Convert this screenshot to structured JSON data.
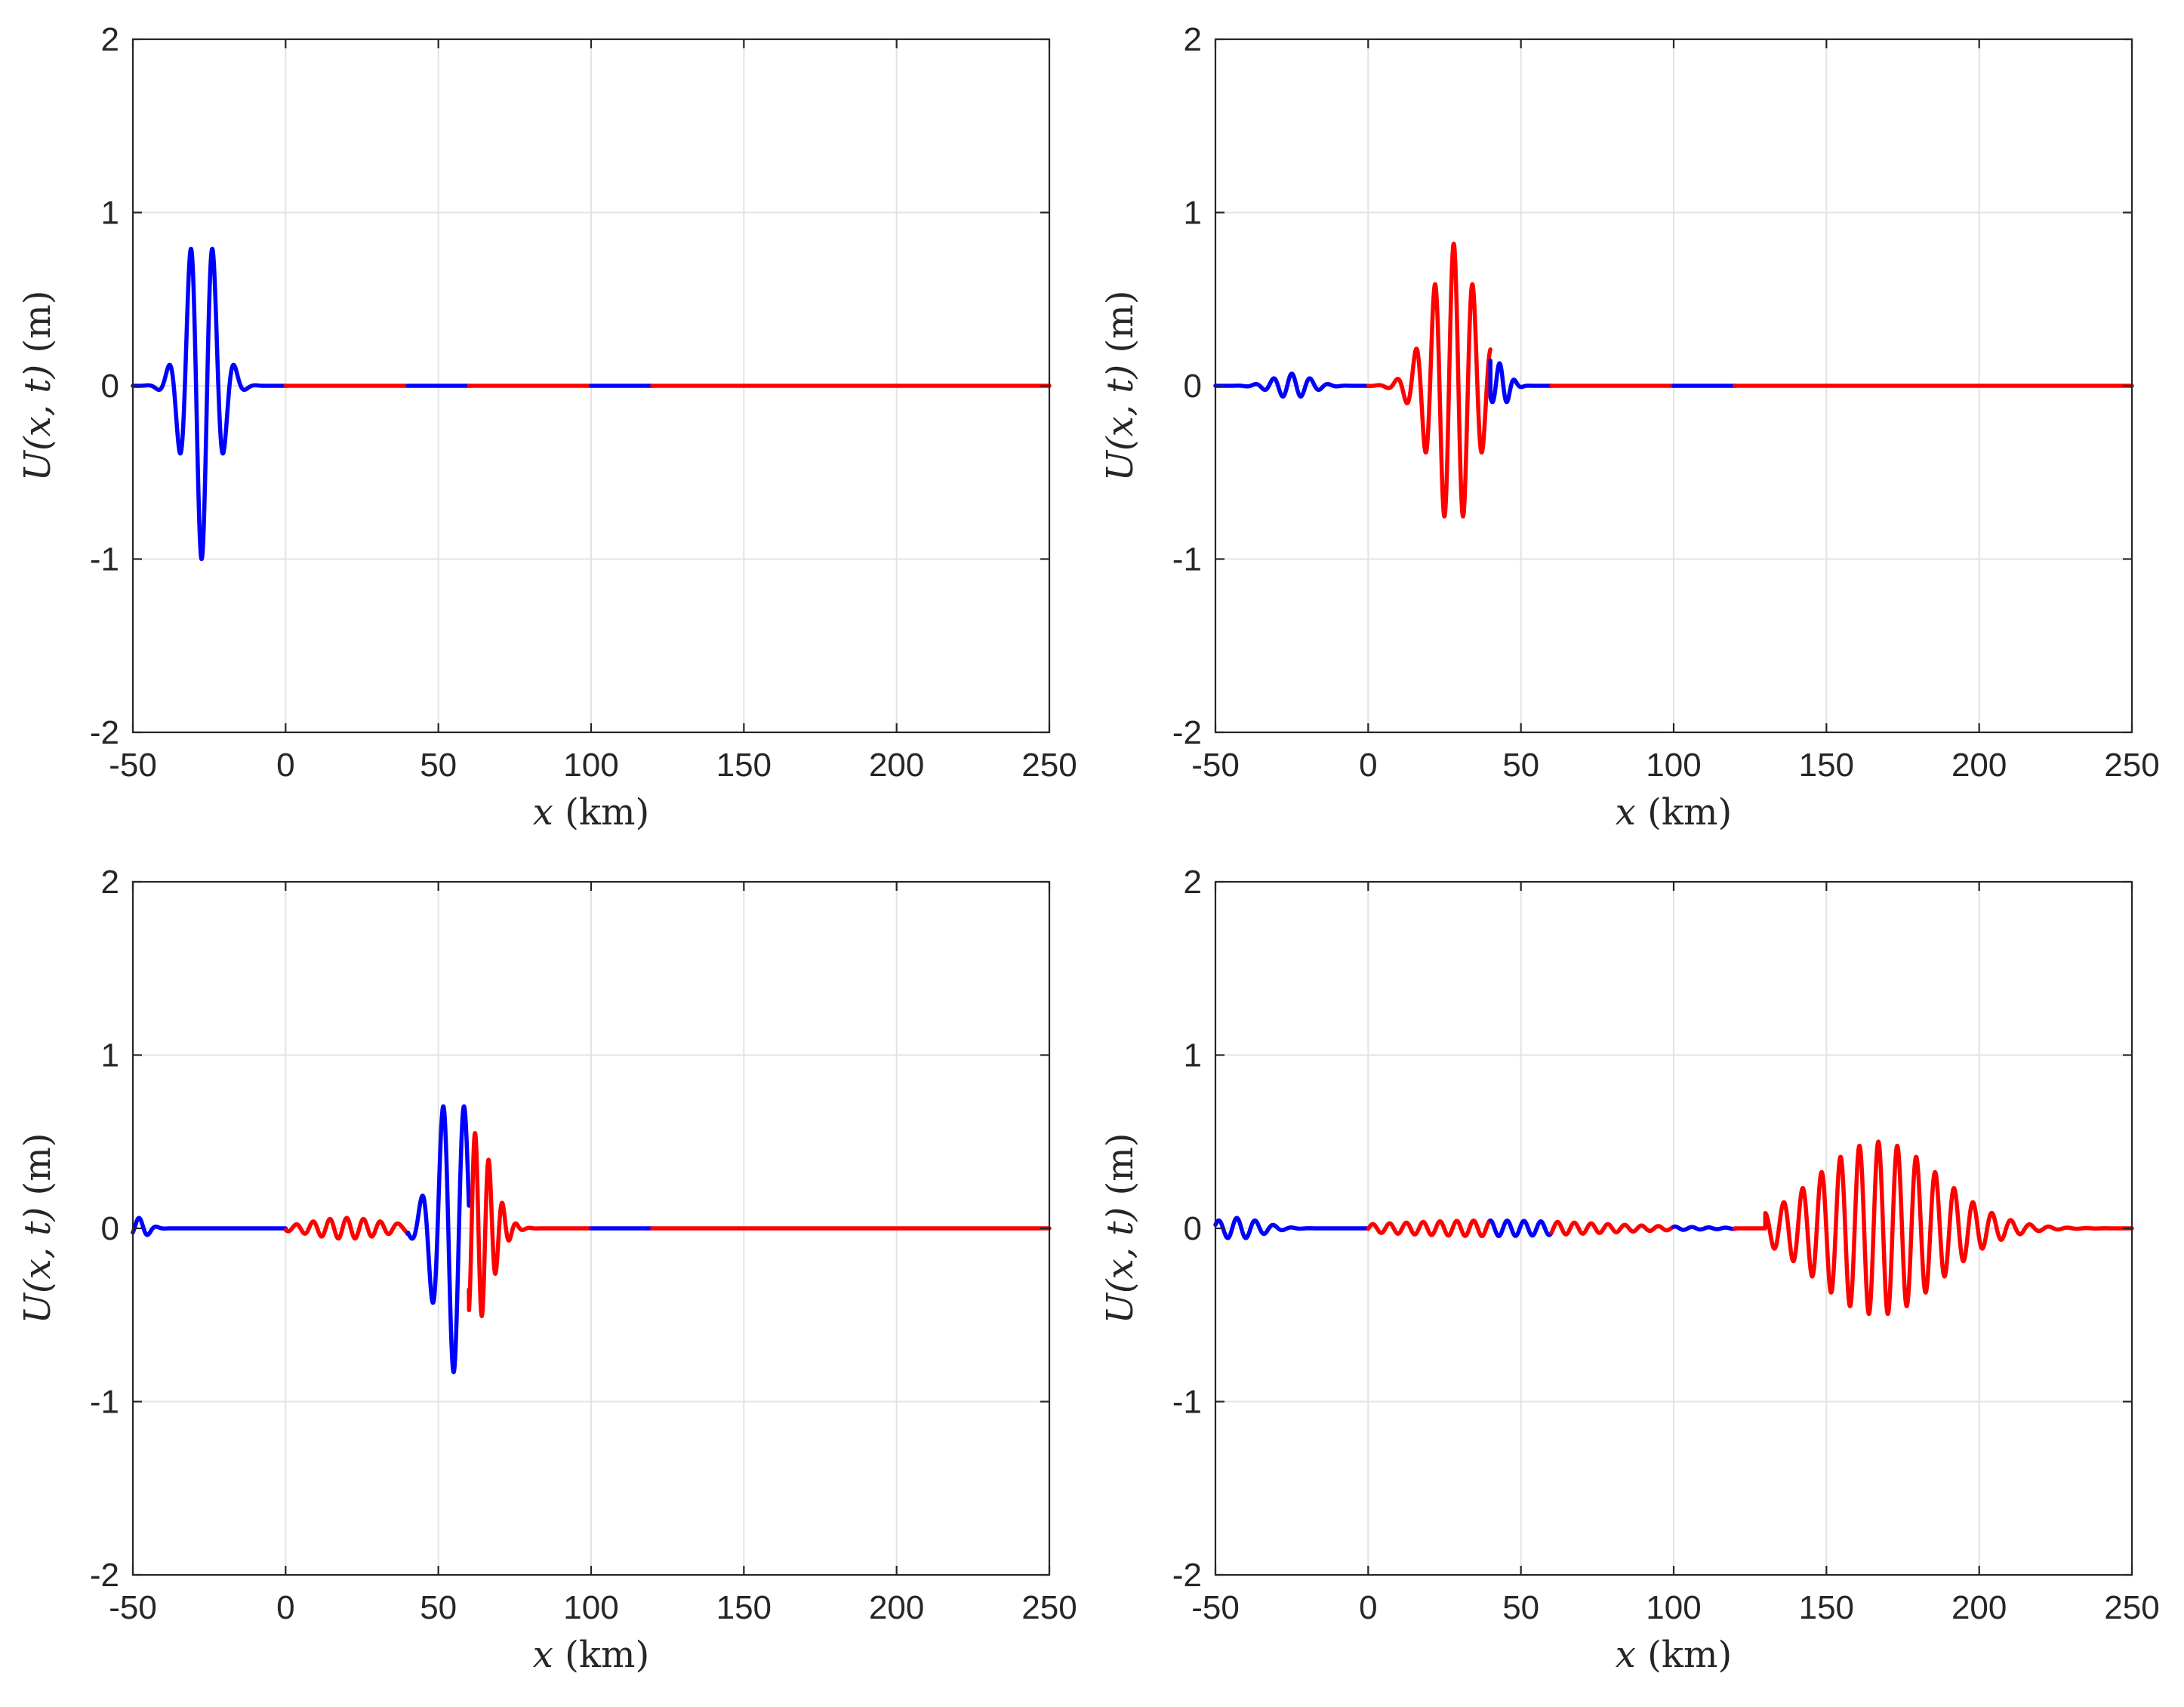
{
  "colors": {
    "blue": "#0000ff",
    "red": "#ff0000",
    "axis": "#262626",
    "grid": "#e3e3e3"
  },
  "chart_data": [
    {
      "type": "line",
      "panel": "top-left",
      "xlabel_var": "x",
      "xlabel_unit": "(km)",
      "ylabel_var": "U(x, t)",
      "ylabel_unit": "(m)",
      "xlim": [
        -50,
        250
      ],
      "ylim": [
        -2,
        2
      ],
      "xticks": [
        -50,
        0,
        50,
        100,
        150,
        200,
        250
      ],
      "xtick_labels": [
        "-50",
        "0",
        "50",
        "100",
        "150",
        "200",
        "250"
      ],
      "yticks": [
        -2,
        -1,
        0,
        1,
        2
      ],
      "ytick_labels": [
        "-2",
        "-1",
        "0",
        "1",
        "2"
      ],
      "grid": true,
      "region_colors": [
        {
          "x0": -50,
          "x1": 0,
          "color": "blue"
        },
        {
          "x0": 0,
          "x1": 40,
          "color": "red"
        },
        {
          "x0": 40,
          "x1": 60,
          "color": "blue"
        },
        {
          "x0": 60,
          "x1": 100,
          "color": "red"
        },
        {
          "x0": 100,
          "x1": 120,
          "color": "blue"
        },
        {
          "x0": 120,
          "x1": 250,
          "color": "red"
        }
      ],
      "wave_packets": [
        {
          "center": -27.5,
          "sigma": 5.2,
          "amplitude": -1.0,
          "wavelength": 7.3
        }
      ],
      "peaks": [
        {
          "x": -31,
          "y": 0.82
        },
        {
          "x": -24,
          "y": 0.82
        },
        {
          "x": -27.5,
          "y": -1.0
        },
        {
          "x": -34,
          "y": -0.46
        },
        {
          "x": -21,
          "y": -0.46
        },
        {
          "x": -37,
          "y": 0.18
        },
        {
          "x": -18,
          "y": 0.18
        }
      ]
    },
    {
      "type": "line",
      "panel": "top-right",
      "xlabel_var": "x",
      "xlabel_unit": "(km)",
      "ylabel_var": "U(x, t)",
      "ylabel_unit": "(m)",
      "xlim": [
        -50,
        250
      ],
      "ylim": [
        -2,
        2
      ],
      "xticks": [
        -50,
        0,
        50,
        100,
        150,
        200,
        250
      ],
      "xtick_labels": [
        "-50",
        "0",
        "50",
        "100",
        "150",
        "200",
        "250"
      ],
      "yticks": [
        -2,
        -1,
        0,
        1,
        2
      ],
      "ytick_labels": [
        "-2",
        "-1",
        "0",
        "1",
        "2"
      ],
      "grid": true,
      "region_colors": [
        {
          "x0": -50,
          "x1": 0,
          "color": "blue"
        },
        {
          "x0": 0,
          "x1": 40,
          "color": "red"
        },
        {
          "x0": 40,
          "x1": 60,
          "color": "blue"
        },
        {
          "x0": 60,
          "x1": 100,
          "color": "red"
        },
        {
          "x0": 100,
          "x1": 120,
          "color": "blue"
        },
        {
          "x0": 120,
          "x1": 250,
          "color": "red"
        }
      ],
      "wave_packets": [
        {
          "center": 28,
          "sigma": 7.5,
          "amplitude": 0.82,
          "wavelength": 6.2,
          "cutoff": 40
        },
        {
          "center": -25,
          "sigma": 6,
          "amplitude": 0.07,
          "wavelength": 6
        },
        {
          "center": 43,
          "sigma": 3,
          "amplitude": 0.13,
          "wavelength": 5,
          "start": 40
        }
      ],
      "peaks": [
        {
          "x": 26,
          "y": 0.82
        },
        {
          "x": 33,
          "y": 0.67
        },
        {
          "x": 30,
          "y": -0.8
        },
        {
          "x": 23.5,
          "y": -0.67
        },
        {
          "x": 37,
          "y": 0.33
        },
        {
          "x": 20,
          "y": 0.42
        },
        {
          "x": 40,
          "y": -0.3
        }
      ]
    },
    {
      "type": "line",
      "panel": "bottom-left",
      "xlabel_var": "x",
      "xlabel_unit": "(km)",
      "ylabel_var": "U(x, t)",
      "ylabel_unit": "(m)",
      "xlim": [
        -50,
        250
      ],
      "ylim": [
        -2,
        2
      ],
      "xticks": [
        -50,
        0,
        50,
        100,
        150,
        200,
        250
      ],
      "xtick_labels": [
        "-50",
        "0",
        "50",
        "100",
        "150",
        "200",
        "250"
      ],
      "yticks": [
        -2,
        -1,
        0,
        1,
        2
      ],
      "ytick_labels": [
        "-2",
        "-1",
        "0",
        "1",
        "2"
      ],
      "grid": true,
      "region_colors": [
        {
          "x0": -50,
          "x1": 0,
          "color": "blue"
        },
        {
          "x0": 0,
          "x1": 40,
          "color": "red"
        },
        {
          "x0": 40,
          "x1": 60,
          "color": "blue"
        },
        {
          "x0": 60,
          "x1": 100,
          "color": "red"
        },
        {
          "x0": 100,
          "x1": 120,
          "color": "blue"
        },
        {
          "x0": 120,
          "x1": 250,
          "color": "red"
        }
      ],
      "wave_packets": [
        {
          "center": 55,
          "sigma": 6,
          "amplitude": -0.83,
          "wavelength": 7,
          "cutoff": 60
        },
        {
          "center": 62,
          "sigma": 5.5,
          "amplitude": 0.55,
          "wavelength": 4.5,
          "start": 60
        },
        {
          "center": 20,
          "sigma": 12,
          "amplitude": 0.06,
          "wavelength": 5.5,
          "start": 0,
          "cutoff": 40
        },
        {
          "center": -48,
          "sigma": 3,
          "amplitude": 0.06,
          "wavelength": 6
        }
      ],
      "peaks": [
        {
          "x": 51,
          "y": 0.72
        },
        {
          "x": 58,
          "y": 0.77
        },
        {
          "x": 54.5,
          "y": -0.83
        },
        {
          "x": 47.5,
          "y": -0.47
        },
        {
          "x": 43.5,
          "y": 0.22
        },
        {
          "x": 64,
          "y": 0.38
        },
        {
          "x": 61,
          "y": -0.57
        }
      ]
    },
    {
      "type": "line",
      "panel": "bottom-right",
      "xlabel_var": "x",
      "xlabel_unit": "(km)",
      "ylabel_var": "U(x, t)",
      "ylabel_unit": "(m)",
      "xlim": [
        -50,
        250
      ],
      "ylim": [
        -2,
        2
      ],
      "xticks": [
        -50,
        0,
        50,
        100,
        150,
        200,
        250
      ],
      "xtick_labels": [
        "-50",
        "0",
        "50",
        "100",
        "150",
        "200",
        "250"
      ],
      "yticks": [
        -2,
        -1,
        0,
        1,
        2
      ],
      "ytick_labels": [
        "-2",
        "-1",
        "0",
        "1",
        "2"
      ],
      "grid": true,
      "region_colors": [
        {
          "x0": -50,
          "x1": 0,
          "color": "blue"
        },
        {
          "x0": 0,
          "x1": 40,
          "color": "red"
        },
        {
          "x0": 40,
          "x1": 60,
          "color": "blue"
        },
        {
          "x0": 60,
          "x1": 100,
          "color": "red"
        },
        {
          "x0": 100,
          "x1": 120,
          "color": "blue"
        },
        {
          "x0": 120,
          "x1": 250,
          "color": "red"
        }
      ],
      "wave_packets": [
        {
          "center": 167,
          "sigma": 20,
          "amplitude": 0.5,
          "wavelength": 6.2,
          "start": 130
        },
        {
          "center": 40,
          "sigma": 35,
          "amplitude": 0.045,
          "wavelength": 5.5,
          "start": 0,
          "cutoff": 120
        },
        {
          "center": -43,
          "sigma": 8,
          "amplitude": 0.06,
          "wavelength": 6
        }
      ],
      "peaks": [
        {
          "x": 160,
          "y": 0.5
        },
        {
          "x": 167,
          "y": 0.5
        },
        {
          "x": 163,
          "y": -0.5
        },
        {
          "x": 170,
          "y": -0.5
        },
        {
          "x": 146,
          "y": 0.25
        },
        {
          "x": 153,
          "y": -0.33
        }
      ]
    }
  ]
}
